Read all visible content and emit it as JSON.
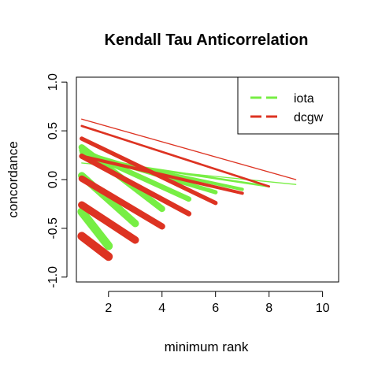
{
  "chart_data": {
    "type": "line",
    "title": "Kendall Tau Anticorrelation",
    "xlabel": "minimum rank",
    "ylabel": "concordance",
    "xlim": [
      0.8,
      10.6
    ],
    "ylim": [
      -1.05,
      1.05
    ],
    "xticks": [
      2,
      4,
      6,
      8,
      10
    ],
    "yticks": [
      -1.0,
      -0.5,
      0.0,
      0.5,
      1.0
    ],
    "xtick_labels": [
      "2",
      "4",
      "6",
      "8",
      "10"
    ],
    "ytick_labels": [
      "-1.0",
      "-0.5",
      "0.0",
      "0.5",
      "1.0"
    ],
    "grid": false,
    "legend_position": "top-right",
    "legend": [
      {
        "label": "iota",
        "color": "#77ee44"
      },
      {
        "label": "dcgw",
        "color": "#dd3322"
      }
    ],
    "series": [
      {
        "name": "iota",
        "color": "#77ee44",
        "segments": [
          {
            "x": [
              1,
              9
            ],
            "y": [
              0.17,
              -0.05
            ],
            "weight": 1
          },
          {
            "x": [
              1,
              8
            ],
            "y": [
              0.22,
              -0.07
            ],
            "weight": 2
          },
          {
            "x": [
              1,
              7
            ],
            "y": [
              0.25,
              -0.1
            ],
            "weight": 3
          },
          {
            "x": [
              1,
              6
            ],
            "y": [
              0.28,
              -0.13
            ],
            "weight": 4
          },
          {
            "x": [
              1,
              5
            ],
            "y": [
              0.3,
              -0.2
            ],
            "weight": 5
          },
          {
            "x": [
              1,
              4
            ],
            "y": [
              0.33,
              -0.3
            ],
            "weight": 6
          },
          {
            "x": [
              1,
              3
            ],
            "y": [
              0.04,
              -0.45
            ],
            "weight": 7
          },
          {
            "x": [
              1,
              2
            ],
            "y": [
              -0.33,
              -0.68
            ],
            "weight": 8
          }
        ]
      },
      {
        "name": "dcgw",
        "color": "#dd3322",
        "segments": [
          {
            "x": [
              1,
              9
            ],
            "y": [
              0.62,
              0.0
            ],
            "weight": 1
          },
          {
            "x": [
              1,
              8
            ],
            "y": [
              0.55,
              -0.07
            ],
            "weight": 2
          },
          {
            "x": [
              1,
              7
            ],
            "y": [
              0.24,
              -0.14
            ],
            "weight": 3
          },
          {
            "x": [
              1,
              6
            ],
            "y": [
              0.42,
              -0.24
            ],
            "weight": 4
          },
          {
            "x": [
              1,
              5
            ],
            "y": [
              0.24,
              -0.35
            ],
            "weight": 5
          },
          {
            "x": [
              1,
              4
            ],
            "y": [
              0.01,
              -0.48
            ],
            "weight": 6
          },
          {
            "x": [
              1,
              3
            ],
            "y": [
              -0.26,
              -0.62
            ],
            "weight": 7
          },
          {
            "x": [
              1,
              2
            ],
            "y": [
              -0.58,
              -0.79
            ],
            "weight": 8
          }
        ]
      }
    ]
  }
}
